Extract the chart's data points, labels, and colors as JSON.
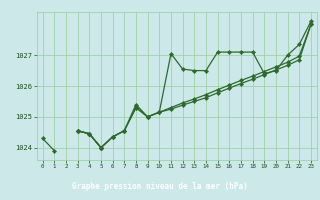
{
  "title": "Graphe pression niveau de la mer (hPa)",
  "xlabel_hours": [
    0,
    1,
    2,
    3,
    4,
    5,
    6,
    7,
    8,
    9,
    10,
    11,
    12,
    13,
    14,
    15,
    16,
    17,
    18,
    19,
    20,
    21,
    22,
    23
  ],
  "series1": [
    1024.3,
    1023.9,
    null,
    1024.55,
    1024.45,
    1024.0,
    null,
    null,
    null,
    null,
    null,
    null,
    null,
    null,
    null,
    null,
    null,
    null,
    null,
    null,
    null,
    null,
    null,
    null
  ],
  "series2": [
    null,
    null,
    null,
    1024.55,
    1024.45,
    1024.0,
    1024.35,
    1024.55,
    1025.4,
    1025.0,
    1025.15,
    1027.05,
    1026.55,
    1026.5,
    1026.5,
    1027.1,
    1027.1,
    1027.1,
    1027.1,
    1026.4,
    1026.5,
    1027.0,
    1027.35,
    1028.1
  ],
  "series3": [
    null,
    null,
    null,
    1024.55,
    1024.45,
    1024.0,
    1024.35,
    1024.55,
    1025.3,
    1025.0,
    1025.15,
    1025.25,
    1025.38,
    1025.5,
    1025.62,
    1025.78,
    1025.93,
    1026.08,
    1026.22,
    1026.37,
    1026.52,
    1026.67,
    1026.85,
    1028.0
  ],
  "series4": [
    null,
    null,
    null,
    1024.55,
    1024.45,
    1024.0,
    1024.35,
    1024.55,
    1025.3,
    1025.0,
    1025.15,
    1025.3,
    1025.45,
    1025.58,
    1025.72,
    1025.88,
    1026.03,
    1026.18,
    1026.32,
    1026.47,
    1026.62,
    1026.77,
    1026.97,
    1028.0
  ],
  "line_color": "#2d6a2d",
  "marker_color": "#2d6a2d",
  "bg_color": "#cce8e8",
  "grid_color": "#99cc99",
  "ylim": [
    1023.6,
    1028.4
  ],
  "yticks": [
    1024,
    1025,
    1026,
    1027
  ],
  "title_color": "#1a4d1a",
  "title_bg": "#336633",
  "title_text_color": "#ffffff"
}
